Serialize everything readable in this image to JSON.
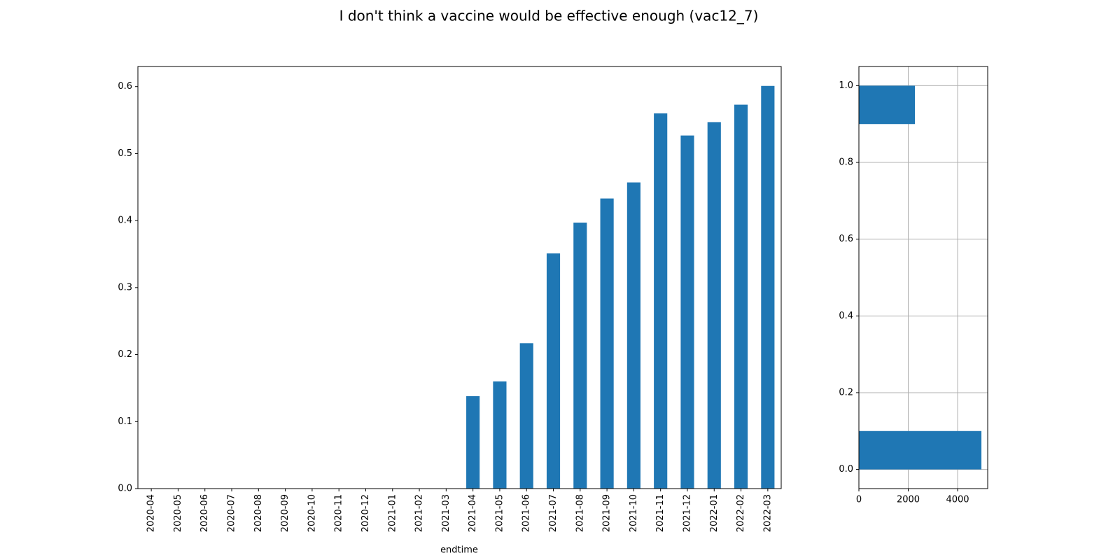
{
  "chart_data": [
    {
      "type": "bar",
      "title": "I don't think a vaccine would be effective enough (vac12_7)",
      "xlabel": "endtime",
      "categories": [
        "2020-04",
        "2020-05",
        "2020-06",
        "2020-07",
        "2020-08",
        "2020-09",
        "2020-10",
        "2020-11",
        "2020-12",
        "2021-01",
        "2021-02",
        "2021-03",
        "2021-04",
        "2021-05",
        "2021-06",
        "2021-07",
        "2021-08",
        "2021-09",
        "2021-10",
        "2021-11",
        "2021-12",
        "2022-01",
        "2022-02",
        "2022-03"
      ],
      "values": [
        0,
        0,
        0,
        0,
        0,
        0,
        0,
        0,
        0,
        0,
        0,
        0,
        0.138,
        0.16,
        0.217,
        0.351,
        0.397,
        0.433,
        0.457,
        0.56,
        0.527,
        0.547,
        0.573,
        0.601
      ],
      "color": "#1f77b4",
      "ylim": [
        0,
        0.63
      ],
      "yticks": [
        {
          "value": 0,
          "label": "0.0"
        },
        0.1,
        0.2,
        0.3,
        0.4,
        0.5,
        0.6
      ],
      "grid": false
    },
    {
      "type": "histogram",
      "orientation": "horizontal",
      "bins": [
        0,
        0.1,
        0.2,
        0.3,
        0.4,
        0.5,
        0.6,
        0.7,
        0.8,
        0.9,
        1
      ],
      "values": [
        4965,
        0,
        0,
        0,
        0,
        0,
        0,
        0,
        0,
        2270
      ],
      "color": "#1f77b4",
      "xlim": [
        0,
        5220
      ],
      "xticks": [
        0,
        2000,
        4000
      ],
      "ylim": [
        -0.05,
        1.05
      ],
      "yticks": [
        {
          "value": 0,
          "label": "0.0"
        },
        0.2,
        0.4,
        0.6,
        0.8,
        {
          "value": 1,
          "label": "1.0"
        }
      ],
      "grid": true
    }
  ]
}
